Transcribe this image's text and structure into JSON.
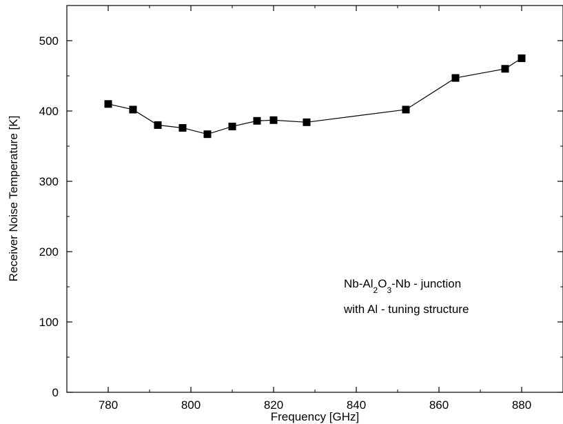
{
  "chart_data": {
    "type": "line",
    "title": "",
    "xlabel": "Frequency [GHz]",
    "ylabel": "Receiver Noise Temperature [K]",
    "xlim": [
      770,
      890
    ],
    "ylim": [
      0,
      550
    ],
    "x_ticks": [
      780,
      800,
      820,
      840,
      860,
      880
    ],
    "y_ticks": [
      0,
      100,
      200,
      300,
      400,
      500
    ],
    "x_minor_step": 10,
    "y_minor_step": 50,
    "grid": false,
    "marker": "square",
    "line_color": "#000000",
    "marker_color": "#000000",
    "series": [
      {
        "x": [
          780,
          786,
          792,
          798,
          804,
          810,
          816,
          820,
          828,
          852,
          864,
          876,
          880
        ],
        "y": [
          410,
          402,
          380,
          376,
          367,
          378,
          386,
          387,
          384,
          402,
          447,
          460,
          475
        ]
      }
    ],
    "annotation": {
      "line1_main": "Nb-Al",
      "line1_sub1": "2",
      "line1_mid": "O",
      "line1_sub2": "3",
      "line1_end": "-Nb - junction",
      "line2": "with Al - tuning structure"
    }
  }
}
